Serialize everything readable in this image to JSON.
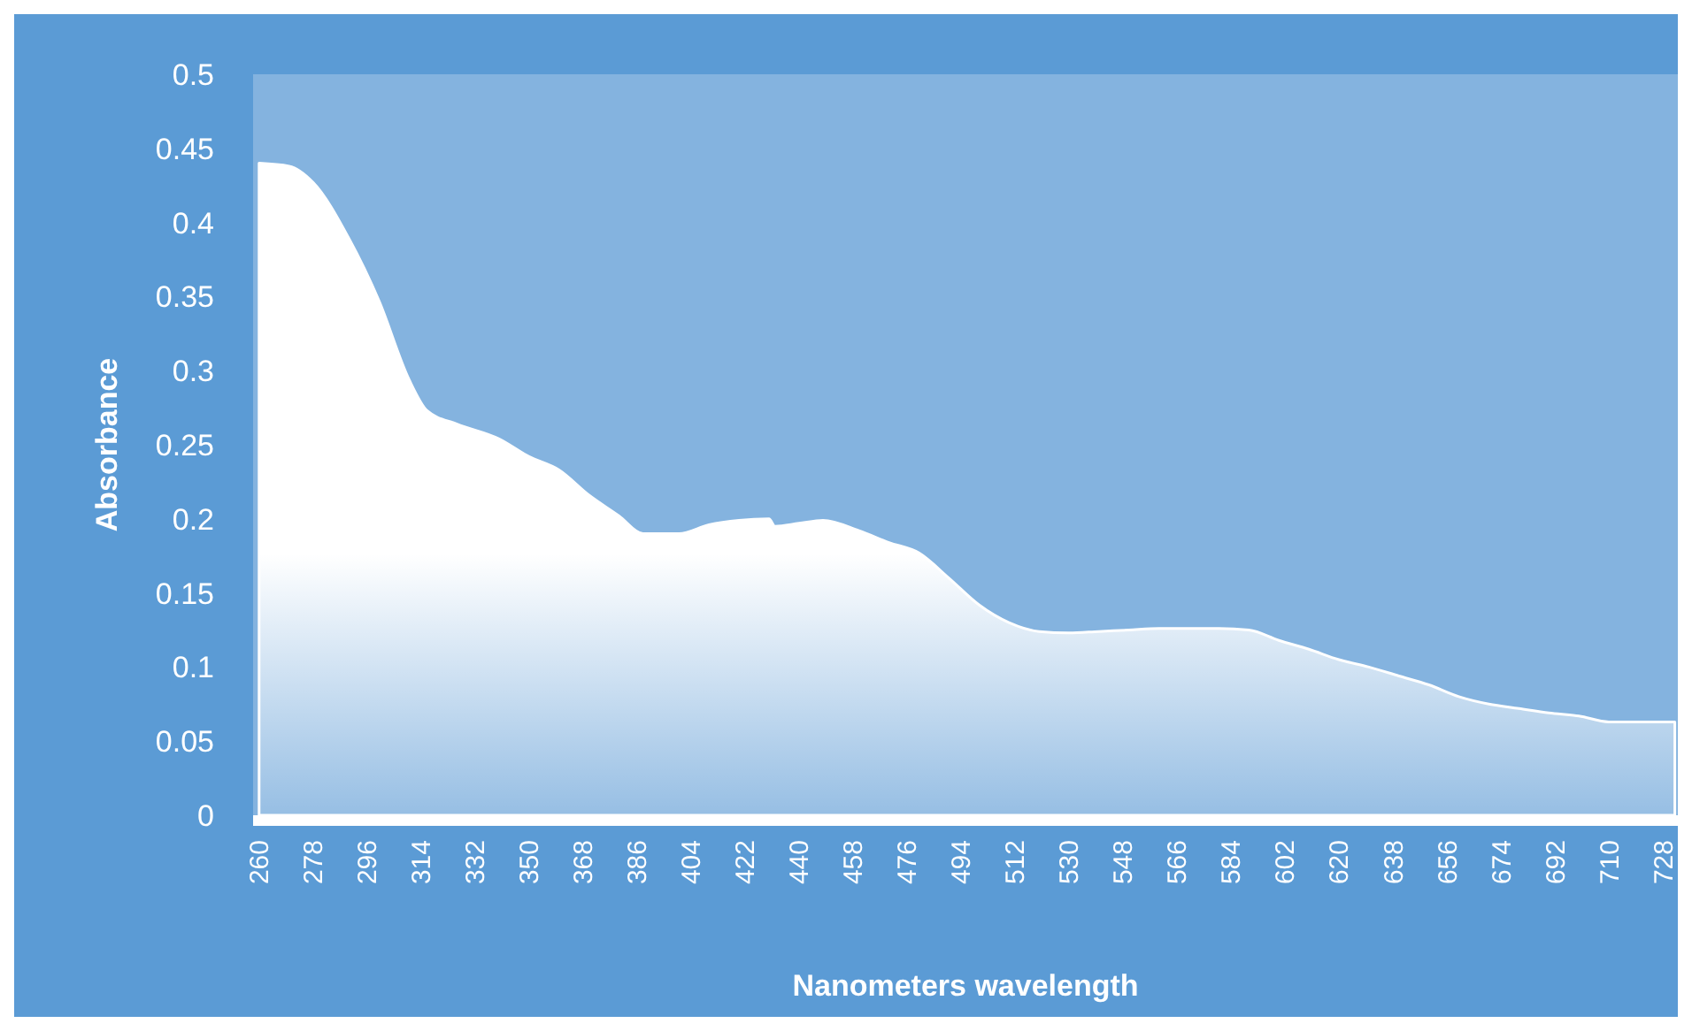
{
  "chart_data": {
    "type": "area",
    "xlabel": "Nanometers wavelength",
    "ylabel": "Absorbance",
    "x": [
      260,
      270,
      278,
      290,
      300,
      310,
      316,
      326,
      340,
      350,
      360,
      370,
      380,
      388,
      400,
      410,
      420,
      430,
      432,
      440,
      448,
      460,
      470,
      480,
      490,
      500,
      510,
      520,
      530,
      540,
      550,
      560,
      570,
      580,
      590,
      600,
      610,
      620,
      630,
      640,
      650,
      660,
      670,
      680,
      690,
      700,
      710,
      720,
      732
    ],
    "series": [
      {
        "color": "#ffffff",
        "values": [
          0.44,
          0.438,
          0.427,
          0.389,
          0.347,
          0.294,
          0.273,
          0.264,
          0.254,
          0.242,
          0.233,
          0.216,
          0.202,
          0.19,
          0.19,
          0.196,
          0.199,
          0.2,
          0.195,
          0.197,
          0.199,
          0.192,
          0.184,
          0.177,
          0.16,
          0.142,
          0.13,
          0.124,
          0.123,
          0.124,
          0.125,
          0.126,
          0.126,
          0.126,
          0.125,
          0.118,
          0.112,
          0.105,
          0.1,
          0.094,
          0.088,
          0.08,
          0.075,
          0.072,
          0.069,
          0.067,
          0.063,
          0.063,
          0.063
        ]
      }
    ],
    "xlim": [
      258,
      733
    ],
    "xticks": [
      260,
      278,
      296,
      314,
      332,
      350,
      368,
      386,
      404,
      422,
      440,
      458,
      476,
      494,
      512,
      530,
      548,
      566,
      584,
      602,
      620,
      638,
      656,
      674,
      692,
      710,
      728
    ],
    "ylim": [
      0,
      0.5
    ],
    "yticks": [
      0,
      0.05,
      0.1,
      0.15,
      0.2,
      0.25,
      0.3,
      0.35,
      0.4,
      0.45,
      0.5
    ],
    "grid": false
  }
}
